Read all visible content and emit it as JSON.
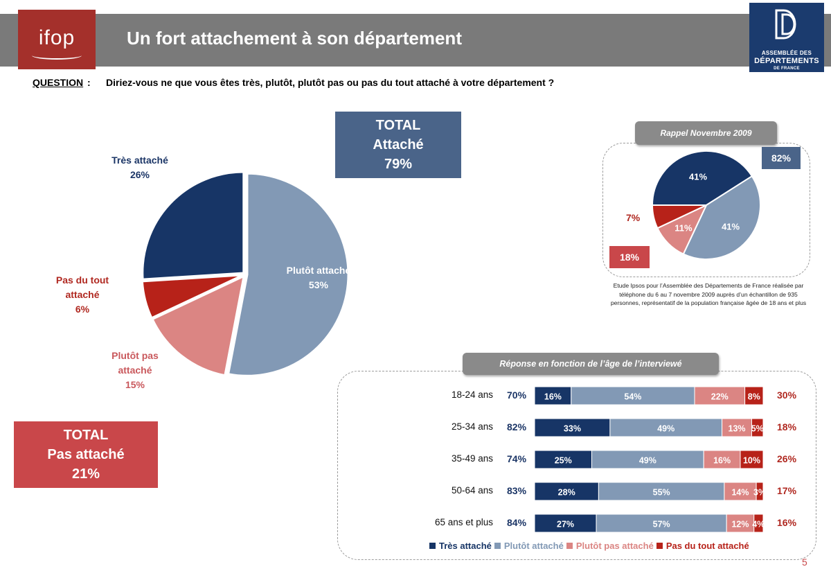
{
  "header": {
    "title": "Un fort attachement à son département",
    "ifop_logo": "ifop",
    "adf_logo": {
      "line1": "ASSEMBLÉE DES",
      "line2": "DÉPARTEMENTS",
      "line3": "DE FRANCE"
    }
  },
  "question": {
    "label": "QUESTION",
    "colon": ":",
    "text": "Diriez-vous ne que vous êtes très, plutôt, plutôt pas ou pas du tout attaché à votre département ?"
  },
  "totals": {
    "attache": {
      "line1": "TOTAL",
      "line2": "Attaché",
      "line3": "79%"
    },
    "pas_attache": {
      "line1": "TOTAL",
      "line2": "Pas attaché",
      "line3": "21%"
    }
  },
  "rappel": {
    "title": "Rappel Novembre 2009",
    "total_attache": "82%",
    "total_pas": "18%",
    "note": "Etude Ipsos pour l’Assemblée des Départements de France réalisée par téléphone du 6 au 7 novembre 2009 auprès d’un échantillon de 935 personnes, représentatif de la population française âgée de 18 ans et plus"
  },
  "age_section": {
    "title": "Réponse en fonction de l’âge de l’interviewé"
  },
  "colors": {
    "tres": "#173566",
    "plutot": "#8299b5",
    "plutot_pas": "#db8583",
    "pas_du_tout": "#b72219",
    "total_att_box": "#4a6489",
    "total_pas_box": "#c9474a"
  },
  "page_number": "5",
  "chart_data": [
    {
      "type": "pie",
      "title": "Un fort attachement à son département",
      "slices": [
        {
          "name": "Très attaché",
          "value": 26,
          "label": "26%"
        },
        {
          "name": "Plutôt attaché",
          "value": 53,
          "label": "53%"
        },
        {
          "name": "Plutôt pas attaché",
          "value": 15,
          "label": "15%"
        },
        {
          "name": "Pas du tout attaché",
          "value": 6,
          "label": "6%"
        }
      ]
    },
    {
      "type": "pie",
      "title": "Rappel Novembre 2009",
      "slices": [
        {
          "name": "Très attaché",
          "value": 41,
          "label": "41%"
        },
        {
          "name": "Plutôt attaché",
          "value": 41,
          "label": "41%"
        },
        {
          "name": "Plutôt pas attaché",
          "value": 11,
          "label": "11%"
        },
        {
          "name": "Pas du tout attaché",
          "value": 7,
          "label": "7%"
        }
      ]
    },
    {
      "type": "bar",
      "orientation": "horizontal",
      "stacked": true,
      "title": "Réponse en fonction de l’âge de l’interviewé",
      "categories": [
        "18-24 ans",
        "25-34 ans",
        "35-49 ans",
        "50-64 ans",
        "65 ans et plus"
      ],
      "series": [
        {
          "name": "Très attaché",
          "values": [
            16,
            33,
            25,
            28,
            27
          ]
        },
        {
          "name": "Plutôt attaché",
          "values": [
            54,
            49,
            49,
            55,
            57
          ]
        },
        {
          "name": "Plutôt pas attaché",
          "values": [
            22,
            13,
            16,
            14,
            12
          ]
        },
        {
          "name": "Pas du tout attaché",
          "values": [
            8,
            5,
            10,
            3,
            4
          ]
        }
      ],
      "total_attache": [
        "70%",
        "82%",
        "74%",
        "83%",
        "84%"
      ],
      "total_pas_attache": [
        "30%",
        "18%",
        "26%",
        "17%",
        "16%"
      ],
      "legend": [
        "Très attaché",
        "Plutôt attaché",
        "Plutôt pas attaché",
        "Pas du tout attaché"
      ]
    }
  ]
}
